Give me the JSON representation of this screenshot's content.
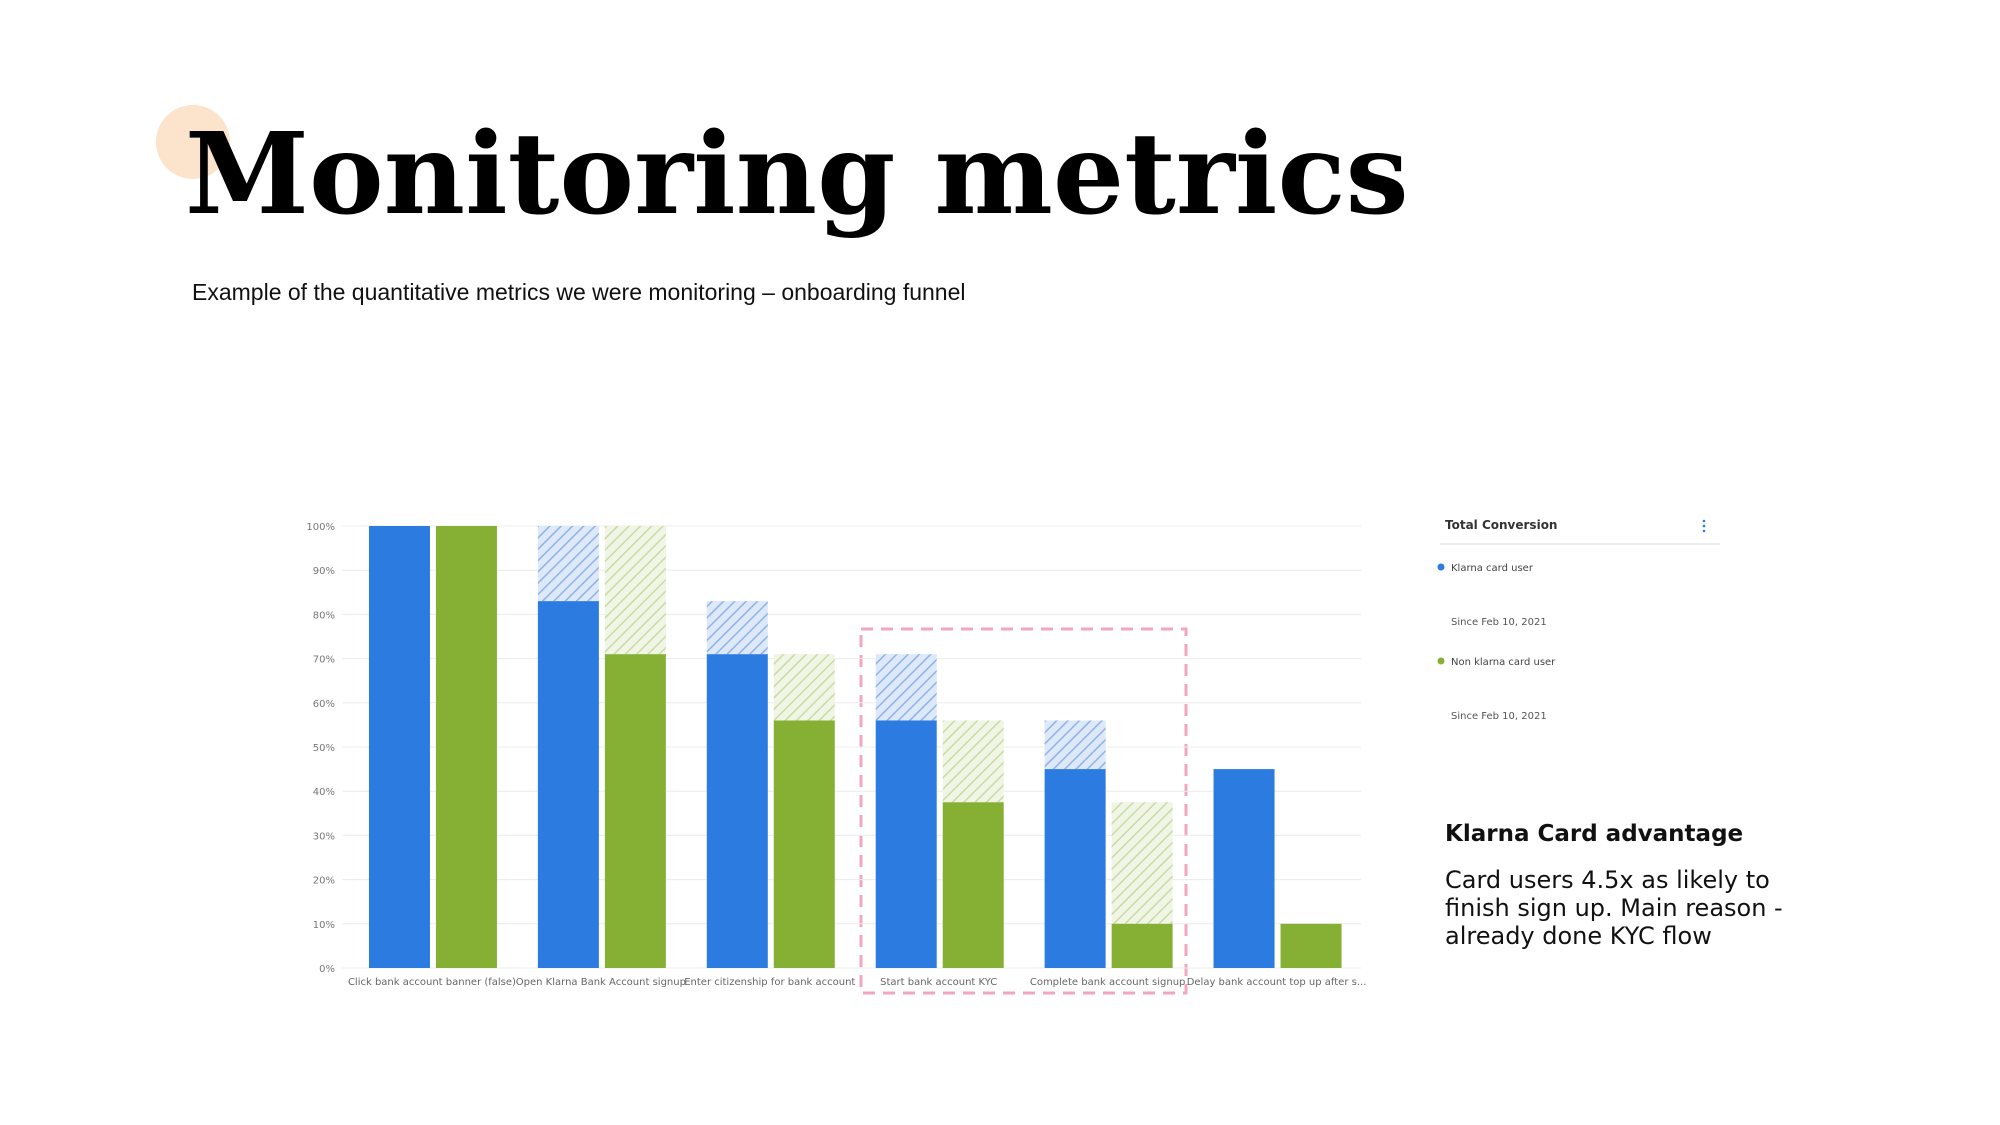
{
  "header": {
    "title": "Monitoring metrics",
    "subtitle": "Example of the quantitative metrics we were monitoring – onboarding funnel"
  },
  "chart_data": {
    "type": "bar",
    "categories": [
      "Click bank account banner (false)",
      "Open Klarna Bank Account signup",
      "Enter citizenship for bank account",
      "Start bank account KYC",
      "Complete bank account signup",
      "Delay bank account top up after s..."
    ],
    "series": [
      {
        "name": "Klarna card user",
        "color": "#2b7be0",
        "values": [
          100,
          83,
          71,
          56,
          45,
          45
        ]
      },
      {
        "name": "Non klarna card user",
        "color": "#86b034",
        "values": [
          100,
          71,
          56,
          37.5,
          10,
          10
        ]
      }
    ],
    "ylim": [
      0,
      100
    ],
    "yticks": [
      {
        "value": 0,
        "label": "0%"
      },
      {
        "value": 10,
        "label": "10%"
      },
      {
        "value": 20,
        "label": "20%"
      },
      {
        "value": 30,
        "label": "30%"
      },
      {
        "value": 40,
        "label": "40%"
      },
      {
        "value": 50,
        "label": "50%"
      },
      {
        "value": 60,
        "label": "60%"
      },
      {
        "value": 70,
        "label": "70%"
      },
      {
        "value": 80,
        "label": "80%"
      },
      {
        "value": 90,
        "label": "90%"
      },
      {
        "value": 100,
        "label": "100%"
      }
    ],
    "grid": true
  },
  "sidebar": {
    "title": "Total Conversion",
    "since": [
      "Since Feb 10, 2021",
      "Since Feb 10, 2021"
    ]
  },
  "note": {
    "title": "Klarna Card advantage",
    "lines": [
      "Card users 4.5x as likely to",
      "finish sign up. Main reason -",
      "already done KYC flow"
    ]
  }
}
